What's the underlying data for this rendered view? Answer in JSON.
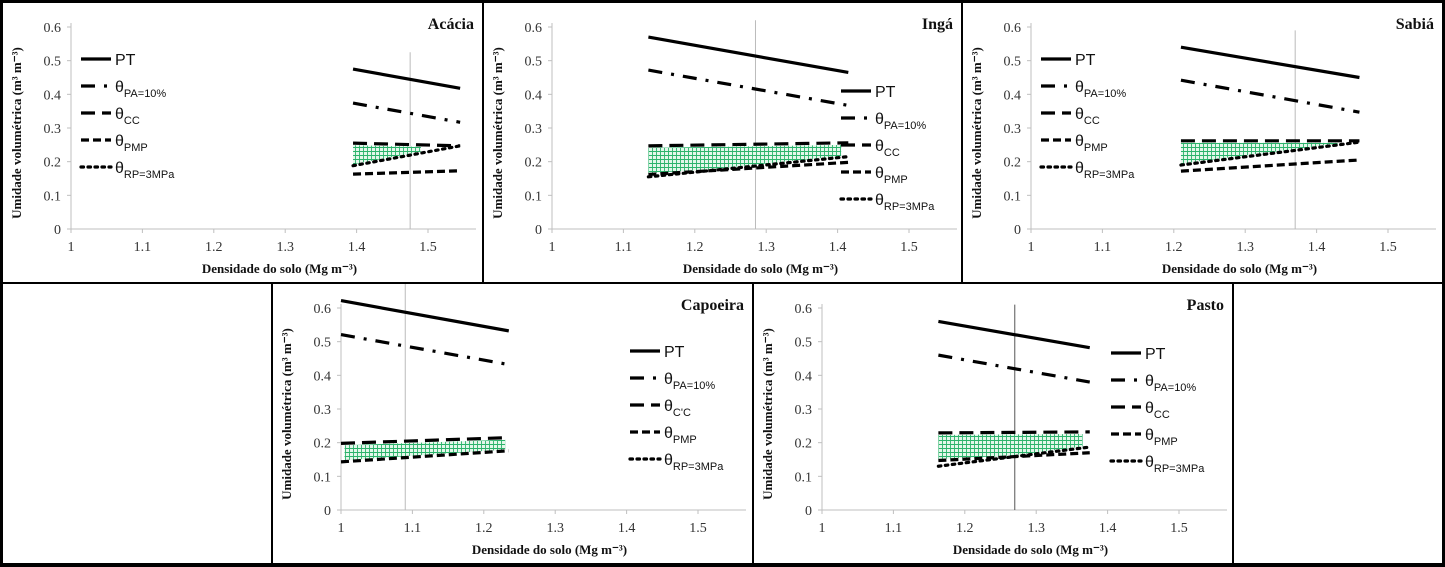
{
  "chart_data": [
    {
      "type": "line",
      "title": "Acácia",
      "xlabel": "Densidade do solo (Mg m⁻³)",
      "ylabel": "Umidade volumétrica (m³ m⁻³)",
      "xlim": [
        1,
        1.55
      ],
      "ylim": [
        0,
        0.6
      ],
      "xticks": [
        "1",
        "1.1",
        "1.2",
        "1.3",
        "1.4",
        "1.5"
      ],
      "yticks": [
        "0",
        "0.1",
        "0.2",
        "0.3",
        "0.4",
        "0.5",
        "0.6"
      ],
      "legend_position": "left",
      "x": [
        1.395,
        1.545
      ],
      "series": [
        {
          "name": "PT",
          "values": [
            0.475,
            0.418
          ]
        },
        {
          "name": "θPA=10%",
          "values": [
            0.374,
            0.317
          ]
        },
        {
          "name": "θCC",
          "values": [
            0.255,
            0.247
          ]
        },
        {
          "name": "θPMP",
          "values": [
            0.163,
            0.173
          ]
        },
        {
          "name": "θRP=3MPa",
          "values": [
            0.188,
            0.247
          ]
        }
      ],
      "optimal_density_line": 1.475,
      "shaded_range": [
        1.395,
        1.49
      ]
    },
    {
      "type": "line",
      "title": "Ingá",
      "xlabel": "Densidade do solo (Mg m⁻³)",
      "ylabel": "Umidade volumétrica (m³ m⁻³)",
      "xlim": [
        1,
        1.55
      ],
      "ylim": [
        0,
        0.6
      ],
      "xticks": [
        "1",
        "1.1",
        "1.2",
        "1.3",
        "1.4",
        "1.5"
      ],
      "yticks": [
        "0",
        "0.1",
        "0.2",
        "0.3",
        "0.4",
        "0.5",
        "0.6"
      ],
      "legend_position": "right",
      "x": [
        1.135,
        1.415
      ],
      "series": [
        {
          "name": "PT",
          "values": [
            0.57,
            0.465
          ]
        },
        {
          "name": "θPA=10%",
          "values": [
            0.472,
            0.367
          ]
        },
        {
          "name": "θCC",
          "values": [
            0.247,
            0.256
          ]
        },
        {
          "name": "θPMP",
          "values": [
            0.162,
            0.198
          ]
        },
        {
          "name": "θRP=3MPa",
          "values": [
            0.155,
            0.215
          ]
        }
      ],
      "optimal_density_line": 1.285,
      "shaded_range": [
        1.135,
        1.405
      ]
    },
    {
      "type": "line",
      "title": "Sabiá",
      "xlabel": "Densidade do solo (Mg m⁻³)",
      "ylabel": "Umidade volumétrica (m³ m⁻³)",
      "xlim": [
        1,
        1.55
      ],
      "ylim": [
        0,
        0.6
      ],
      "xticks": [
        "1",
        "1.1",
        "1.2",
        "1.3",
        "1.4",
        "1.5"
      ],
      "yticks": [
        "0",
        "0.1",
        "0.2",
        "0.3",
        "0.4",
        "0.5",
        "0.6"
      ],
      "legend_position": "left",
      "x": [
        1.21,
        1.46
      ],
      "series": [
        {
          "name": "PT",
          "values": [
            0.54,
            0.45
          ]
        },
        {
          "name": "θPA=10%",
          "values": [
            0.442,
            0.347
          ]
        },
        {
          "name": "θCC",
          "values": [
            0.262,
            0.262
          ]
        },
        {
          "name": "θPMP",
          "values": [
            0.172,
            0.205
          ]
        },
        {
          "name": "θRP=3MPa",
          "values": [
            0.19,
            0.258
          ]
        }
      ],
      "optimal_density_line": 1.37,
      "shaded_range": [
        1.21,
        1.43
      ]
    },
    {
      "type": "line",
      "title": "Capoeira",
      "xlabel": "Densidade do solo (Mg m⁻³)",
      "ylabel": "Umidade volumétrica (m³ m⁻³)",
      "xlim": [
        1,
        1.55
      ],
      "ylim": [
        0,
        0.6
      ],
      "xticks": [
        "1",
        "1.1",
        "1.2",
        "1.3",
        "1.4",
        "1.5"
      ],
      "yticks": [
        "0",
        "0.1",
        "0.2",
        "0.3",
        "0.4",
        "0.5",
        "0.6"
      ],
      "legend_position": "right",
      "legend_cc_label": "θC'C",
      "x": [
        1.0,
        1.235
      ],
      "series": [
        {
          "name": "PT",
          "values": [
            0.622,
            0.532
          ]
        },
        {
          "name": "θPA=10%",
          "values": [
            0.521,
            0.432
          ]
        },
        {
          "name": "θCC",
          "values": [
            0.198,
            0.215
          ]
        },
        {
          "name": "θPMP",
          "values": [
            0.143,
            0.176
          ]
        },
        {
          "name": "θRP=3MPa",
          "values": [
            0.1,
            0.13
          ]
        }
      ],
      "optimal_density_line": 1.09,
      "shaded_range": [
        1.005,
        1.23
      ]
    },
    {
      "type": "line",
      "title": "Pasto",
      "xlabel": "Densidade do solo (Mg m⁻³)",
      "ylabel": "Umidade volumétrica (m³ m⁻³)",
      "xlim": [
        1,
        1.55
      ],
      "ylim": [
        0,
        0.6
      ],
      "xticks": [
        "1",
        "1.1",
        "1.2",
        "1.3",
        "1.4",
        "1.5"
      ],
      "yticks": [
        "0",
        "0.1",
        "0.2",
        "0.3",
        "0.4",
        "0.5",
        "0.6"
      ],
      "legend_position": "right",
      "x": [
        1.163,
        1.375
      ],
      "series": [
        {
          "name": "PT",
          "values": [
            0.56,
            0.482
          ]
        },
        {
          "name": "θPA=10%",
          "values": [
            0.46,
            0.38
          ]
        },
        {
          "name": "θCC",
          "values": [
            0.229,
            0.232
          ]
        },
        {
          "name": "θPMP",
          "values": [
            0.147,
            0.17
          ]
        },
        {
          "name": "θRP=3MPa",
          "values": [
            0.13,
            0.187
          ]
        }
      ],
      "optimal_density_line": 1.27,
      "shaded_range": [
        1.163,
        1.365
      ]
    }
  ],
  "legend": {
    "pt": "PT",
    "theta": "θ",
    "pa_sub": "PA=10%",
    "cc_sub": "CC",
    "pmp_sub": "PMP",
    "rp_sub": "RP=3MPa"
  },
  "colors": {
    "shade": "#2bb36b",
    "line": "#000000",
    "axis": "#bfbfbf"
  }
}
